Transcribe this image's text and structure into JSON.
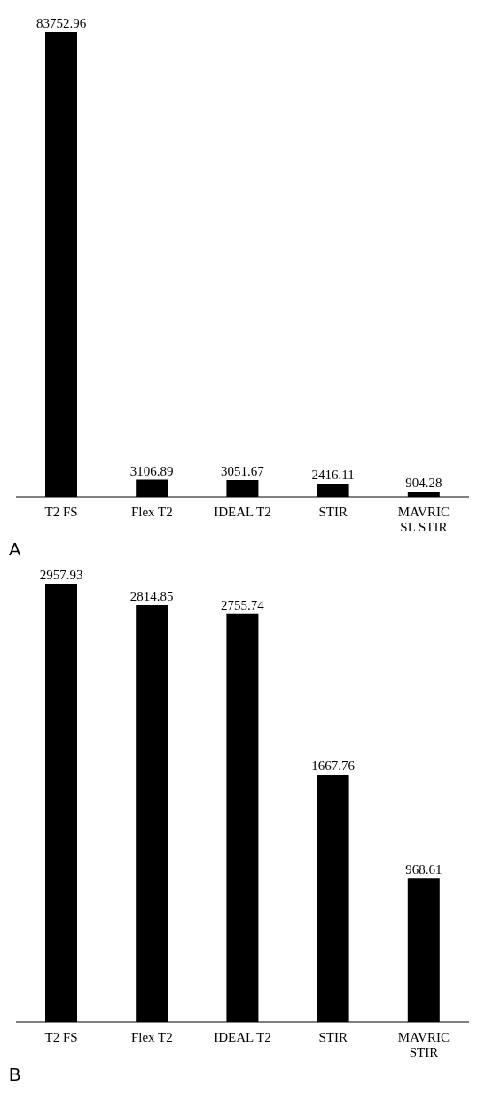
{
  "chart_data": [
    {
      "type": "bar",
      "categories": [
        "T2 FS",
        "Flex T2",
        "IDEAL T2",
        "STIR",
        "MAVRIC SL STIR"
      ],
      "values": [
        83752.96,
        3106.89,
        3051.67,
        2416.11,
        904.28
      ],
      "color": "#000000",
      "data_labels": true,
      "annotations": [
        "A"
      ]
    },
    {
      "type": "bar",
      "categories": [
        "T2 FS",
        "Flex T2",
        "IDEAL T2",
        "STIR",
        "MAVRIC STIR"
      ],
      "values": [
        2957.93,
        2814.85,
        2755.74,
        1667.76,
        968.61
      ],
      "color": "#000000",
      "data_labels": true,
      "annotations": [
        "B"
      ]
    }
  ]
}
